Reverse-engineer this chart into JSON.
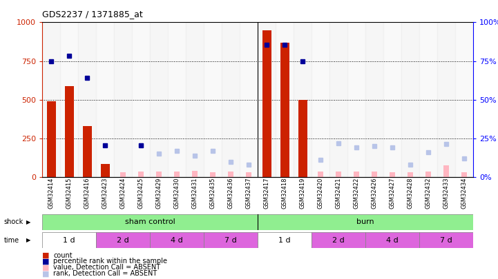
{
  "title": "GDS2237 / 1371885_at",
  "samples": [
    "GSM32414",
    "GSM32415",
    "GSM32416",
    "GSM32423",
    "GSM32424",
    "GSM32425",
    "GSM32429",
    "GSM32430",
    "GSM32431",
    "GSM32435",
    "GSM32436",
    "GSM32437",
    "GSM32417",
    "GSM32418",
    "GSM32419",
    "GSM32420",
    "GSM32421",
    "GSM32422",
    "GSM32426",
    "GSM32427",
    "GSM32428",
    "GSM32432",
    "GSM32433",
    "GSM32434"
  ],
  "count_values": [
    490,
    590,
    330,
    85,
    0,
    0,
    0,
    0,
    0,
    0,
    0,
    0,
    950,
    870,
    500,
    0,
    0,
    0,
    0,
    0,
    0,
    0,
    0,
    0
  ],
  "percentile_values": [
    748,
    783,
    643,
    207,
    null,
    207,
    null,
    null,
    null,
    null,
    null,
    null,
    855,
    855,
    748,
    null,
    null,
    null,
    null,
    null,
    null,
    null,
    null,
    null
  ],
  "absent_count_values": [
    null,
    null,
    null,
    null,
    30,
    35,
    35,
    35,
    40,
    30,
    35,
    30,
    null,
    null,
    null,
    35,
    35,
    35,
    35,
    30,
    30,
    35,
    75,
    30
  ],
  "absent_rank_values": [
    null,
    null,
    null,
    null,
    null,
    207,
    150,
    170,
    140,
    170,
    100,
    80,
    null,
    null,
    null,
    110,
    220,
    190,
    200,
    190,
    80,
    160,
    215,
    120
  ],
  "ylim_left": [
    0,
    1000
  ],
  "ylim_right": [
    0,
    100
  ],
  "yticks_left": [
    0,
    250,
    500,
    750,
    1000
  ],
  "yticks_right": [
    0,
    25,
    50,
    75,
    100
  ],
  "bar_color": "#CC2200",
  "percentile_color": "#000099",
  "absent_count_color": "#FFB6C1",
  "absent_rank_color": "#B8C4E8",
  "background_color": "#ffffff",
  "shock_groups": [
    {
      "label": "sham control",
      "start": 0,
      "end": 12,
      "color": "#90EE90"
    },
    {
      "label": "burn",
      "start": 12,
      "end": 24,
      "color": "#90EE90"
    }
  ],
  "time_groups": [
    {
      "label": "1 d",
      "start": 0,
      "end": 3,
      "color": "#ffffff"
    },
    {
      "label": "2 d",
      "start": 3,
      "end": 6,
      "color": "#DD66DD"
    },
    {
      "label": "4 d",
      "start": 6,
      "end": 9,
      "color": "#DD66DD"
    },
    {
      "label": "7 d",
      "start": 9,
      "end": 12,
      "color": "#DD66DD"
    },
    {
      "label": "1 d",
      "start": 12,
      "end": 15,
      "color": "#ffffff"
    },
    {
      "label": "2 d",
      "start": 15,
      "end": 18,
      "color": "#DD66DD"
    },
    {
      "label": "4 d",
      "start": 18,
      "end": 21,
      "color": "#DD66DD"
    },
    {
      "label": "7 d",
      "start": 21,
      "end": 24,
      "color": "#DD66DD"
    }
  ]
}
